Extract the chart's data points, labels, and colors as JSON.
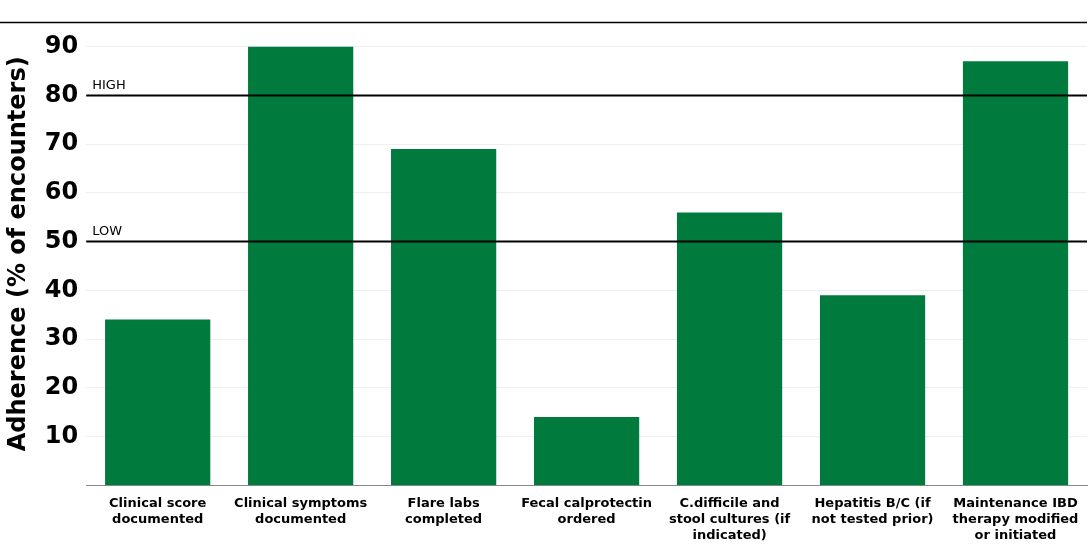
{
  "chart_data": {
    "type": "bar",
    "ylabel": "Adherence (% of encounters)",
    "categories": [
      "Clinical score documented",
      "Clinical symptoms documented",
      "Flare labs completed",
      "Fecal calprotectin ordered",
      "C.difficile and stool cultures (if indicated)",
      "Hepatitis B/C (if not tested prior)",
      "Maintenance IBD therapy modified or initiated"
    ],
    "values": [
      34,
      90,
      69,
      14,
      56,
      39,
      87
    ],
    "color": "#007a3d",
    "ylim": [
      0,
      95
    ],
    "yticks": [
      10,
      20,
      30,
      40,
      50,
      60,
      70,
      80,
      90
    ],
    "grid": "y",
    "legend": false,
    "ref_lines": [
      {
        "axis": "y",
        "value": 80,
        "label": "HIGH",
        "color": "#000000"
      },
      {
        "axis": "y",
        "value": 50,
        "label": "LOW",
        "color": "#000000"
      }
    ]
  }
}
